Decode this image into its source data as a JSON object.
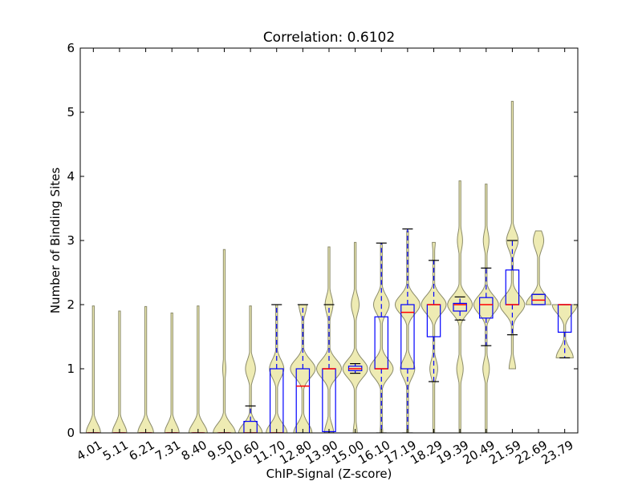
{
  "chart_data": {
    "type": "violin+box",
    "title": "Correlation: 0.6102",
    "xlabel": "ChIP-Signal (Z-score)",
    "ylabel": "Number of Binding Sites",
    "ylim": [
      0,
      6
    ],
    "yticks": [
      "0",
      "1",
      "2",
      "3",
      "4",
      "5",
      "6"
    ],
    "categories": [
      "4.01",
      "5.11",
      "6.21",
      "7.31",
      "8.40",
      "9.50",
      "10.60",
      "11.70",
      "12.80",
      "13.90",
      "15.00",
      "16.10",
      "17.19",
      "18.29",
      "19.39",
      "20.49",
      "21.59",
      "22.69",
      "23.79"
    ],
    "violin_color": "#e8e49a",
    "box_color": "#0000ff",
    "median_color": "#ff0000",
    "violins": [
      {
        "min": 0,
        "max": 1.98,
        "peaks": [
          [
            0,
            0.55
          ]
        ],
        "tail": 0.07
      },
      {
        "min": 0,
        "max": 1.9,
        "peaks": [
          [
            0,
            0.55
          ]
        ],
        "tail": 0.07
      },
      {
        "min": 0,
        "max": 1.97,
        "peaks": [
          [
            0,
            0.6
          ]
        ],
        "tail": 0.07
      },
      {
        "min": 0,
        "max": 1.87,
        "peaks": [
          [
            0,
            0.55
          ],
          [
            1.0,
            0.04
          ]
        ],
        "tail": 0.07
      },
      {
        "min": 0,
        "max": 1.98,
        "peaks": [
          [
            0,
            0.7
          ],
          [
            1.0,
            0.06
          ]
        ],
        "tail": 0.07
      },
      {
        "min": 0,
        "max": 2.86,
        "peaks": [
          [
            0,
            0.85
          ],
          [
            1.0,
            0.12
          ]
        ],
        "tail": 0.07
      },
      {
        "min": 0,
        "max": 1.98,
        "peaks": [
          [
            0,
            0.9
          ],
          [
            1.0,
            0.38
          ]
        ],
        "tail": 0.07
      },
      {
        "min": 0,
        "max": 2.0,
        "peaks": [
          [
            0,
            0.8
          ],
          [
            1.0,
            0.55
          ]
        ],
        "tail": 0.07
      },
      {
        "min": 0,
        "max": 2.0,
        "peaks": [
          [
            0,
            0.7
          ],
          [
            1.0,
            0.95
          ],
          [
            2.0,
            0.3
          ]
        ],
        "tail": 0.07
      },
      {
        "min": 0,
        "max": 2.9,
        "peaks": [
          [
            0,
            0.35
          ],
          [
            1.0,
            0.95
          ],
          [
            2.0,
            0.3
          ]
        ],
        "tail": 0.07
      },
      {
        "min": 0,
        "max": 2.97,
        "peaks": [
          [
            0,
            0.15
          ],
          [
            1.0,
            0.95
          ],
          [
            2.0,
            0.3
          ]
        ],
        "tail": 0.07
      },
      {
        "min": 0,
        "max": 2.95,
        "peaks": [
          [
            0,
            0.1
          ],
          [
            1.0,
            0.9
          ],
          [
            2.0,
            0.6
          ]
        ],
        "tail": 0.07
      },
      {
        "min": 0,
        "max": 3.15,
        "peaks": [
          [
            0,
            0.08
          ],
          [
            1.0,
            0.55
          ],
          [
            2.0,
            0.95
          ]
        ],
        "tail": 0.07
      },
      {
        "min": 0,
        "max": 2.97,
        "peaks": [
          [
            0,
            0.06
          ],
          [
            1.0,
            0.3
          ],
          [
            2.0,
            0.95
          ],
          [
            3.0,
            0.12
          ]
        ],
        "tail": 0.07
      },
      {
        "min": 0,
        "max": 3.93,
        "peaks": [
          [
            1.0,
            0.25
          ],
          [
            2.0,
            0.95
          ],
          [
            3.0,
            0.2
          ]
        ],
        "tail": 0.07
      },
      {
        "min": 0,
        "max": 3.88,
        "peaks": [
          [
            1.0,
            0.25
          ],
          [
            2.0,
            0.95
          ],
          [
            3.0,
            0.22
          ]
        ],
        "tail": 0.07
      },
      {
        "min": 1.0,
        "max": 5.17,
        "peaks": [
          [
            1.0,
            0.25
          ],
          [
            2.0,
            0.95
          ],
          [
            3.0,
            0.45
          ]
        ],
        "tail": 0.07
      },
      {
        "min": 2.0,
        "max": 3.15,
        "peaks": [
          [
            2.0,
            0.95
          ],
          [
            3.0,
            0.4
          ]
        ],
        "tail": 0.07
      },
      {
        "min": 1.17,
        "max": 2.0,
        "peaks": [
          [
            1.17,
            0.65
          ],
          [
            2.0,
            0.95
          ]
        ],
        "tail": 0.07
      }
    ],
    "boxes": [
      {
        "q1": 0,
        "median": 0,
        "q3": 0,
        "whislo": 0,
        "whishi": 0
      },
      {
        "q1": 0,
        "median": 0,
        "q3": 0,
        "whislo": 0,
        "whishi": 0
      },
      {
        "q1": 0,
        "median": 0,
        "q3": 0,
        "whislo": 0,
        "whishi": 0
      },
      {
        "q1": 0,
        "median": 0,
        "q3": 0,
        "whislo": 0,
        "whishi": 0
      },
      {
        "q1": 0,
        "median": 0,
        "q3": 0,
        "whislo": 0,
        "whishi": 0
      },
      {
        "q1": 0,
        "median": 0,
        "q3": 0,
        "whislo": 0,
        "whishi": 0
      },
      {
        "q1": 0,
        "median": 0,
        "q3": 0.18,
        "whislo": 0,
        "whishi": 0.42
      },
      {
        "q1": 0,
        "median": 0,
        "q3": 1.0,
        "whislo": 0,
        "whishi": 2.0
      },
      {
        "q1": 0,
        "median": 0.73,
        "q3": 1.0,
        "whislo": 0,
        "whishi": 2.0
      },
      {
        "q1": 0.02,
        "median": 1.0,
        "q3": 1.0,
        "whislo": 0,
        "whishi": 2.0
      },
      {
        "q1": 0.97,
        "median": 1.0,
        "q3": 1.04,
        "whislo": 0.93,
        "whishi": 1.08
      },
      {
        "q1": 1.0,
        "median": 1.0,
        "q3": 1.81,
        "whislo": 0,
        "whishi": 2.96
      },
      {
        "q1": 1.0,
        "median": 1.88,
        "q3": 2.0,
        "whislo": 0,
        "whishi": 3.18
      },
      {
        "q1": 1.5,
        "median": 2.0,
        "q3": 2.0,
        "whislo": 0.8,
        "whishi": 2.69
      },
      {
        "q1": 1.9,
        "median": 2.0,
        "q3": 2.02,
        "whislo": 1.76,
        "whishi": 2.12
      },
      {
        "q1": 1.79,
        "median": 2.0,
        "q3": 2.11,
        "whislo": 1.36,
        "whishi": 2.57
      },
      {
        "q1": 2.0,
        "median": 2.0,
        "q3": 2.54,
        "whislo": 1.53,
        "whishi": 3.0
      },
      {
        "q1": 2.0,
        "median": 2.07,
        "q3": 2.16,
        "whislo": 2.0,
        "whishi": 2.16
      },
      {
        "q1": 1.57,
        "median": 2.0,
        "q3": 2.0,
        "whislo": 1.17,
        "whishi": 2.0
      }
    ]
  }
}
